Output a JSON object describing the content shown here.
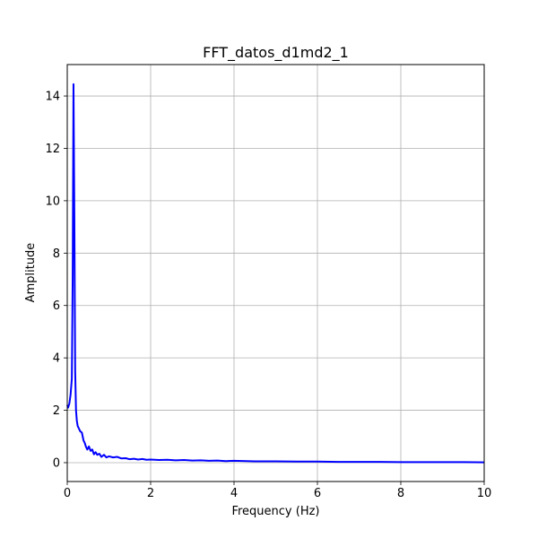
{
  "chart_data": {
    "type": "line",
    "title": "FFT_datos_d1md2_1",
    "xlabel": "Frequency (Hz)",
    "ylabel": "Amplitude",
    "xlim": [
      0,
      10
    ],
    "ylim": [
      -0.72,
      15.2
    ],
    "x_ticks": [
      0,
      2,
      4,
      6,
      8,
      10
    ],
    "y_ticks": [
      0,
      2,
      4,
      6,
      8,
      10,
      12,
      14
    ],
    "grid": true,
    "legend": "none",
    "series": [
      {
        "color": "#0000ff",
        "x": [
          0.0,
          0.02,
          0.05,
          0.08,
          0.11,
          0.13,
          0.15,
          0.17,
          0.19,
          0.21,
          0.23,
          0.25,
          0.28,
          0.31,
          0.35,
          0.39,
          0.42,
          0.45,
          0.48,
          0.52,
          0.56,
          0.6,
          0.64,
          0.68,
          0.72,
          0.77,
          0.82,
          0.88,
          0.94,
          1.0,
          1.1,
          1.2,
          1.3,
          1.4,
          1.5,
          1.6,
          1.7,
          1.8,
          1.9,
          2.0,
          2.2,
          2.4,
          2.6,
          2.8,
          3.0,
          3.2,
          3.4,
          3.6,
          3.8,
          4.0,
          4.5,
          5.0,
          5.5,
          6.0,
          6.5,
          7.0,
          7.5,
          8.0,
          8.5,
          9.0,
          9.5,
          10.0
        ],
        "y": [
          2.2,
          2.1,
          2.25,
          2.6,
          3.2,
          7.0,
          14.45,
          9.5,
          3.5,
          2.0,
          1.6,
          1.4,
          1.3,
          1.2,
          1.15,
          0.85,
          0.75,
          0.6,
          0.5,
          0.62,
          0.45,
          0.5,
          0.32,
          0.4,
          0.3,
          0.34,
          0.22,
          0.3,
          0.2,
          0.24,
          0.2,
          0.22,
          0.16,
          0.17,
          0.13,
          0.15,
          0.12,
          0.14,
          0.11,
          0.12,
          0.1,
          0.11,
          0.09,
          0.1,
          0.08,
          0.09,
          0.07,
          0.08,
          0.06,
          0.07,
          0.05,
          0.05,
          0.04,
          0.04,
          0.03,
          0.03,
          0.03,
          0.02,
          0.02,
          0.02,
          0.02,
          0.01
        ]
      }
    ]
  }
}
